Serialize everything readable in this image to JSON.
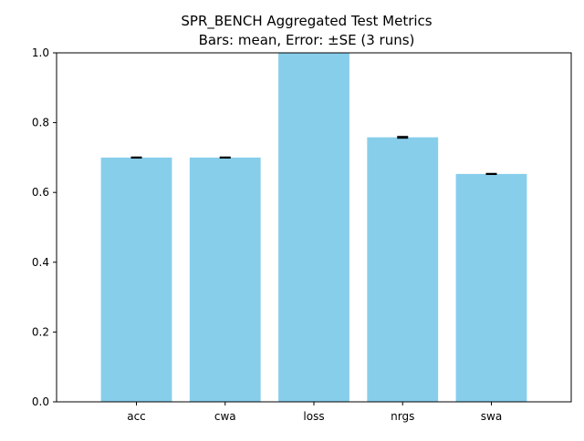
{
  "chart_data": {
    "type": "bar",
    "title": "SPR_BENCH Aggregated Test Metrics",
    "subtitle": "Bars: mean, Error: ±SE (3 runs)",
    "xlabel": "",
    "ylabel": "",
    "categories": [
      "acc",
      "cwa",
      "loss",
      "nrgs",
      "swa"
    ],
    "values": [
      0.7,
      0.7,
      1.0,
      0.758,
      0.653
    ],
    "errors": [
      0.001,
      0.001,
      0.0,
      0.002,
      0.001
    ],
    "ylim": [
      0,
      1.0
    ],
    "yticks": [
      "0.0",
      "0.2",
      "0.4",
      "0.6",
      "0.8",
      "1.0"
    ],
    "ytick_values": [
      0.0,
      0.2,
      0.4,
      0.6,
      0.8,
      1.0
    ],
    "grid": false,
    "legend": "none",
    "bar_color": "#87ceeb",
    "error_color": "#000000"
  }
}
